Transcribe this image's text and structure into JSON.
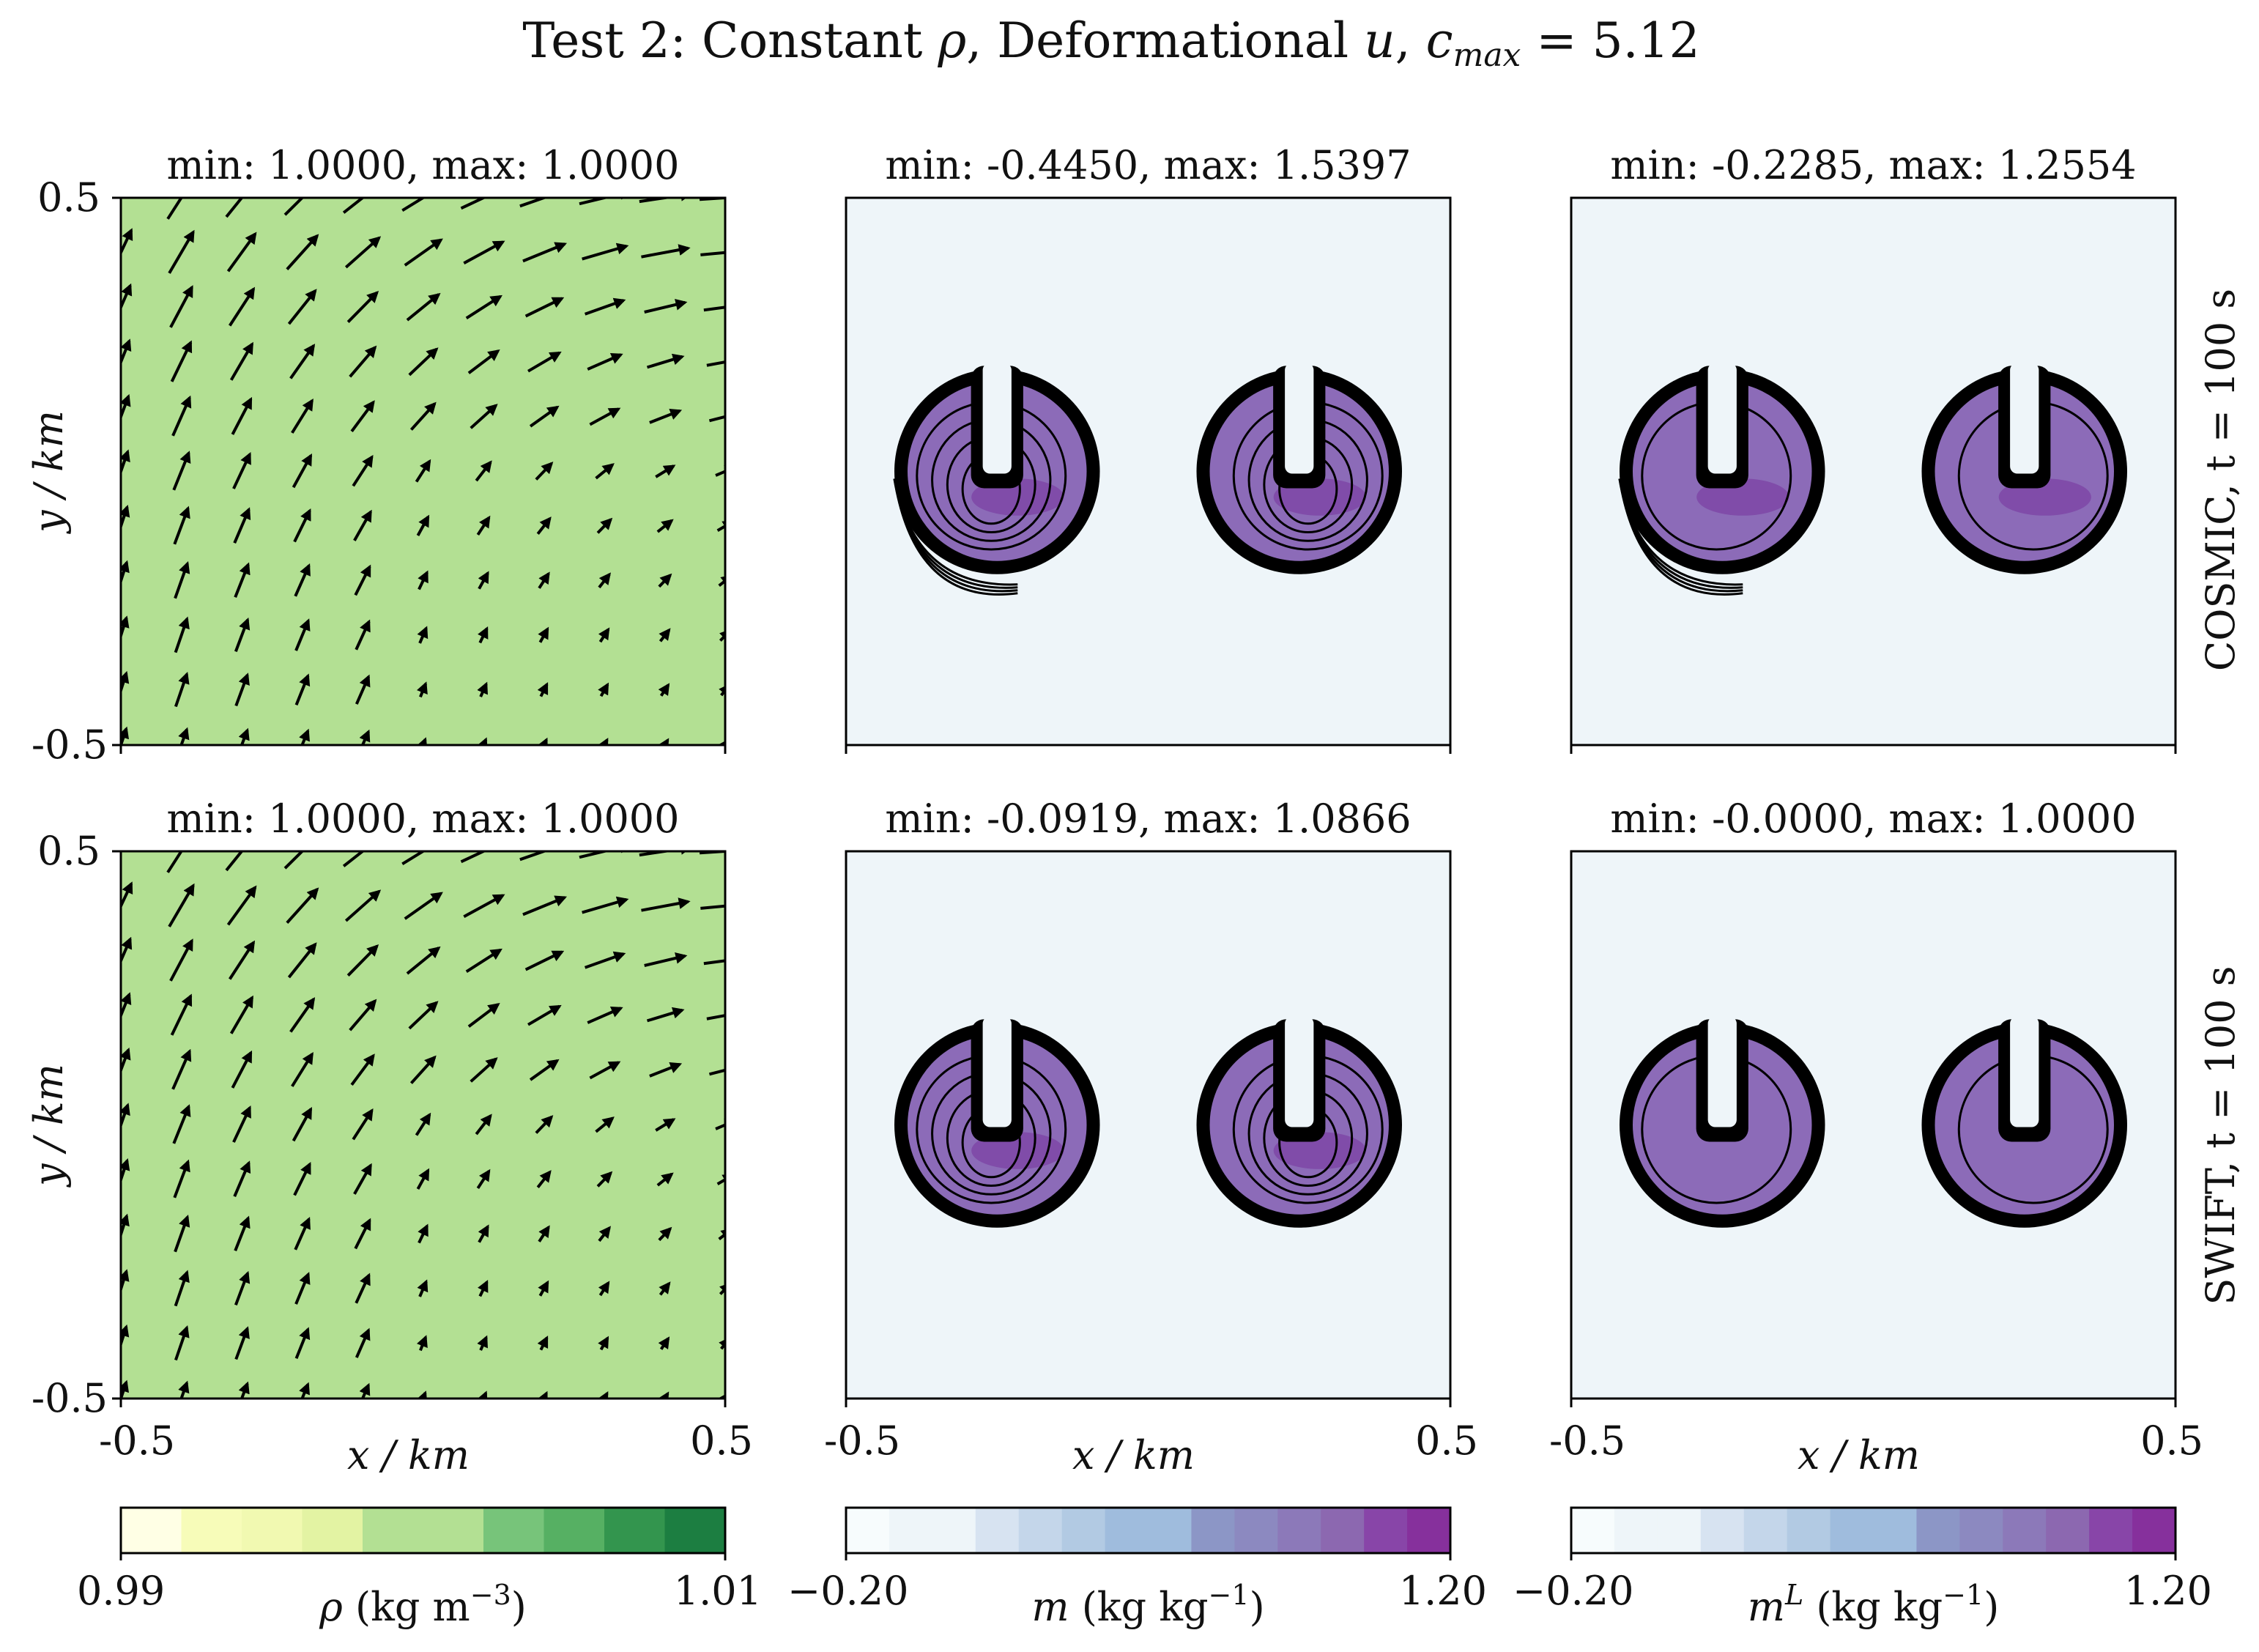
{
  "figure": {
    "title": "Test 2: Constant ρ, Deformational u, c_max = 5.12",
    "title_parts": {
      "pre": "Test 2: Constant ",
      "rho": "ρ",
      "mid": ", Deformational ",
      "u": "u",
      "sep": ", ",
      "c": "c",
      "sub": "max",
      "post": " = 5.12"
    }
  },
  "colors": {
    "density_fill": "#b3e093",
    "tracer_background": "#eef5f9",
    "tracer_fill": "#8c6bb8",
    "tracer_dark": "#7b3fa3",
    "contour": "#000000",
    "arrow": "#000000"
  },
  "chart_data": [
    {
      "type": "quiver",
      "id": "cosmic-density",
      "row_label": "COSMIC, t = 100 s",
      "subtitle": "min: 1.0000, max: 1.0000",
      "field": "rho",
      "min": 1.0,
      "max": 1.0,
      "xlim": [
        -0.5,
        0.5
      ],
      "ylim": [
        -0.5,
        0.5
      ],
      "xlabel": "",
      "ylabel": "y / km",
      "xticks": [],
      "yticks": [
        "0.5",
        "-0.5"
      ]
    },
    {
      "type": "contour",
      "id": "cosmic-m",
      "subtitle": "min: -0.4450, max: 1.5397",
      "field": "m",
      "min": -0.445,
      "max": 1.5397,
      "xlim": [
        -0.5,
        0.5
      ],
      "ylim": [
        -0.5,
        0.5
      ],
      "xlabel": "",
      "ylabel": "",
      "xticks": [],
      "yticks": [],
      "blobs": [
        {
          "cx": -0.25,
          "cy": 0.0,
          "r": 0.17
        },
        {
          "cx": 0.25,
          "cy": 0.0,
          "r": 0.17
        }
      ]
    },
    {
      "type": "contour",
      "id": "cosmic-mL",
      "subtitle": "min: -0.2285, max: 1.2554",
      "field": "mL",
      "min": -0.2285,
      "max": 1.2554,
      "xlim": [
        -0.5,
        0.5
      ],
      "ylim": [
        -0.5,
        0.5
      ],
      "xlabel": "",
      "ylabel": "",
      "xticks": [],
      "yticks": [],
      "blobs": [
        {
          "cx": -0.25,
          "cy": 0.0,
          "r": 0.17
        },
        {
          "cx": 0.25,
          "cy": 0.0,
          "r": 0.17
        }
      ]
    },
    {
      "type": "quiver",
      "id": "swift-density",
      "row_label": "SWIFT, t = 100 s",
      "subtitle": "min: 1.0000, max: 1.0000",
      "field": "rho",
      "min": 1.0,
      "max": 1.0,
      "xlim": [
        -0.5,
        0.5
      ],
      "ylim": [
        -0.5,
        0.5
      ],
      "xlabel": "x / km",
      "ylabel": "y / km",
      "xticks": [
        "-0.5",
        "0.5"
      ],
      "yticks": [
        "0.5",
        "-0.5"
      ]
    },
    {
      "type": "contour",
      "id": "swift-m",
      "subtitle": "min: -0.0919, max: 1.0866",
      "field": "m",
      "min": -0.0919,
      "max": 1.0866,
      "xlim": [
        -0.5,
        0.5
      ],
      "ylim": [
        -0.5,
        0.5
      ],
      "xlabel": "x / km",
      "ylabel": "",
      "xticks": [
        "-0.5",
        "0.5"
      ],
      "yticks": [],
      "blobs": [
        {
          "cx": -0.25,
          "cy": 0.0,
          "r": 0.17
        },
        {
          "cx": 0.25,
          "cy": 0.0,
          "r": 0.17
        }
      ]
    },
    {
      "type": "contour",
      "id": "swift-mL",
      "subtitle": "min: -0.0000, max: 1.0000",
      "field": "mL",
      "min": -0.0,
      "max": 1.0,
      "xlim": [
        -0.5,
        0.5
      ],
      "ylim": [
        -0.5,
        0.5
      ],
      "xlabel": "x / km",
      "ylabel": "",
      "xticks": [
        "-0.5",
        "0.5"
      ],
      "yticks": [],
      "blobs": [
        {
          "cx": -0.25,
          "cy": 0.0,
          "r": 0.17
        },
        {
          "cx": 0.25,
          "cy": 0.0,
          "r": 0.17
        }
      ]
    }
  ],
  "colorbars": [
    {
      "id": "rho-colorbar",
      "label": "ρ (kg m⁻³)",
      "label_parts": {
        "sym": "ρ",
        "units": " (kg m",
        "exp": "−3",
        "close": ")"
      },
      "min_label": "0.99",
      "max_label": "1.01",
      "range": [
        0.99,
        1.01
      ],
      "colors": [
        "#ffffe5",
        "#f7fcb9",
        "#f1f9b1",
        "#e3f3a3",
        "#b3e093",
        "#b3e093",
        "#77c47a",
        "#56b063",
        "#33954e",
        "#1c7e41"
      ]
    },
    {
      "id": "m-colorbar",
      "label": "m (kg kg⁻¹)",
      "label_parts": {
        "sym": "m",
        "units": " (kg kg",
        "exp": "−1",
        "close": ")"
      },
      "min_label": "−0.20",
      "max_label": "1.20",
      "range": [
        -0.2,
        1.2
      ],
      "colors": [
        "#f7fcfd",
        "#eef5f9",
        "#eef5f9",
        "#d7e3f1",
        "#c4d6ea",
        "#b2cae3",
        "#9fbcdd",
        "#9fbcdd",
        "#8c96c6",
        "#8c89c0",
        "#8c79b9",
        "#8c68b0",
        "#8845a8",
        "#86309c"
      ]
    },
    {
      "id": "mL-colorbar",
      "label": "m^L (kg kg⁻¹)",
      "label_parts": {
        "sym": "m",
        "sup": "L",
        "units": " (kg kg",
        "exp": "−1",
        "close": ")"
      },
      "min_label": "−0.20",
      "max_label": "1.20",
      "range": [
        -0.2,
        1.2
      ],
      "colors": [
        "#f7fcfd",
        "#eef5f9",
        "#eef5f9",
        "#d7e3f1",
        "#c4d6ea",
        "#b2cae3",
        "#9fbcdd",
        "#9fbcdd",
        "#8c96c6",
        "#8c89c0",
        "#8c79b9",
        "#8c68b0",
        "#8845a8",
        "#86309c"
      ]
    }
  ]
}
